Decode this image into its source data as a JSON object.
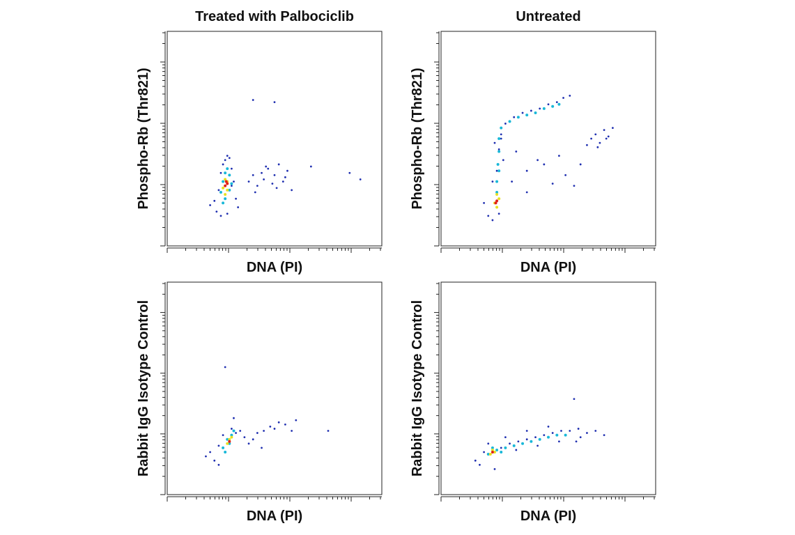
{
  "chart_data": [
    {
      "type": "scatter",
      "title": "Treated with Palbociclib",
      "xlabel": "DNA (PI)",
      "ylabel": "Phospho-Rb (Thr821)",
      "xlim": [
        0,
        100
      ],
      "ylim": [
        0,
        100
      ],
      "series": [
        {
          "color": "#1f2fb0",
          "x": [
            20,
            22,
            23,
            24,
            25,
            26,
            27,
            28,
            29,
            30,
            31,
            32,
            33,
            25,
            28,
            30,
            38,
            40,
            42,
            44,
            45,
            47,
            49,
            50,
            52,
            54,
            56,
            58,
            41,
            46,
            51,
            55,
            67,
            85,
            90,
            40,
            50
          ],
          "y": [
            19,
            21,
            16,
            26,
            34,
            38,
            40,
            42,
            41,
            36,
            30,
            22,
            18,
            14,
            15,
            28,
            30,
            33,
            28,
            34,
            31,
            36,
            29,
            33,
            38,
            30,
            35,
            26,
            25,
            37,
            27,
            32,
            37,
            34,
            31,
            68,
            67
          ]
        },
        {
          "color": "#19b8d8",
          "x": [
            25,
            26,
            27,
            28,
            29,
            30,
            27,
            26,
            29
          ],
          "y": [
            25,
            30,
            34,
            36,
            33,
            29,
            22,
            20,
            26
          ]
        },
        {
          "color": "#e8e020",
          "x": [
            26,
            27,
            28,
            28,
            27
          ],
          "y": [
            27,
            31,
            30,
            26,
            24
          ]
        },
        {
          "color": "#e0201a",
          "x": [
            27,
            27.5,
            28
          ],
          "y": [
            28,
            30,
            29
          ]
        }
      ]
    },
    {
      "type": "scatter",
      "title": "Untreated",
      "xlabel": "DNA (PI)",
      "ylabel": "Phospho-Rb (Thr821)",
      "xlim": [
        0,
        100
      ],
      "ylim": [
        0,
        100
      ],
      "series": [
        {
          "color": "#1f2fb0",
          "x": [
            22,
            24,
            27,
            29,
            25,
            28,
            30,
            34,
            38,
            42,
            46,
            50,
            54,
            57,
            60,
            33,
            40,
            48,
            55,
            62,
            70,
            72,
            74,
            76,
            78,
            80,
            68,
            73,
            77,
            35,
            45,
            52,
            40,
            58,
            65,
            24,
            26,
            27,
            28,
            20
          ],
          "y": [
            14,
            12,
            15,
            40,
            48,
            52,
            57,
            60,
            62,
            63,
            64,
            66,
            67,
            69,
            70,
            30,
            35,
            38,
            42,
            28,
            50,
            52,
            48,
            54,
            51,
            55,
            47,
            46,
            50,
            44,
            40,
            29,
            25,
            33,
            38,
            30,
            35,
            45,
            50,
            20
          ]
        },
        {
          "color": "#19b8d8",
          "x": [
            26,
            26.5,
            27,
            27,
            28,
            32,
            36,
            40,
            44,
            48,
            52,
            55,
            26,
            27
          ],
          "y": [
            30,
            38,
            44,
            50,
            55,
            58,
            60,
            61,
            62,
            64,
            65,
            66,
            25,
            35
          ]
        },
        {
          "color": "#e8e020",
          "x": [
            25,
            26,
            26,
            27
          ],
          "y": [
            20,
            24,
            18,
            22
          ]
        },
        {
          "color": "#e0201a",
          "x": [
            25.5,
            26
          ],
          "y": [
            20,
            21
          ]
        }
      ]
    },
    {
      "type": "scatter",
      "xlabel": "DNA (PI)",
      "ylabel": "Rabbit IgG Isotype Control",
      "xlim": [
        0,
        100
      ],
      "ylim": [
        0,
        100
      ],
      "series": [
        {
          "color": "#1f2fb0",
          "x": [
            18,
            20,
            22,
            24,
            26,
            30,
            32,
            34,
            36,
            38,
            40,
            42,
            45,
            48,
            50,
            52,
            55,
            58,
            60,
            44,
            75,
            27,
            24,
            31
          ],
          "y": [
            18,
            20,
            16,
            23,
            28,
            31,
            29,
            30,
            27,
            24,
            26,
            29,
            30,
            32,
            31,
            34,
            33,
            30,
            35,
            22,
            30,
            60,
            14,
            36
          ]
        },
        {
          "color": "#19b8d8",
          "x": [
            26,
            28,
            30,
            31,
            27,
            29
          ],
          "y": [
            22,
            26,
            28,
            30,
            20,
            24
          ]
        },
        {
          "color": "#e8e020",
          "x": [
            28,
            29,
            30
          ],
          "y": [
            24,
            26,
            27
          ]
        },
        {
          "color": "#e0201a",
          "x": [
            29
          ],
          "y": [
            25
          ]
        }
      ]
    },
    {
      "type": "scatter",
      "xlabel": "DNA (PI)",
      "ylabel": "Rabbit IgG Isotype Control",
      "xlim": [
        0,
        100
      ],
      "ylim": [
        0,
        100
      ],
      "series": [
        {
          "color": "#1f2fb0",
          "x": [
            16,
            18,
            20,
            22,
            28,
            32,
            36,
            40,
            44,
            48,
            52,
            56,
            60,
            64,
            68,
            72,
            76,
            35,
            45,
            55,
            65,
            62,
            50,
            25,
            30,
            40,
            63
          ],
          "y": [
            16,
            14,
            20,
            24,
            22,
            24,
            25,
            26,
            27,
            28,
            29,
            30,
            30,
            31,
            29,
            30,
            28,
            21,
            23,
            25,
            27,
            45,
            32,
            12,
            27,
            30,
            25
          ]
        },
        {
          "color": "#19b8d8",
          "x": [
            22,
            24,
            26,
            28,
            30,
            34,
            38,
            42,
            46,
            50,
            54,
            58
          ],
          "y": [
            19,
            22,
            21,
            20,
            22,
            23,
            24,
            25,
            26,
            27,
            28,
            28
          ]
        },
        {
          "color": "#e8e020",
          "x": [
            23,
            24,
            25
          ],
          "y": [
            19,
            21,
            20
          ]
        },
        {
          "color": "#e0201a",
          "x": [
            24
          ],
          "y": [
            20
          ]
        }
      ]
    }
  ]
}
